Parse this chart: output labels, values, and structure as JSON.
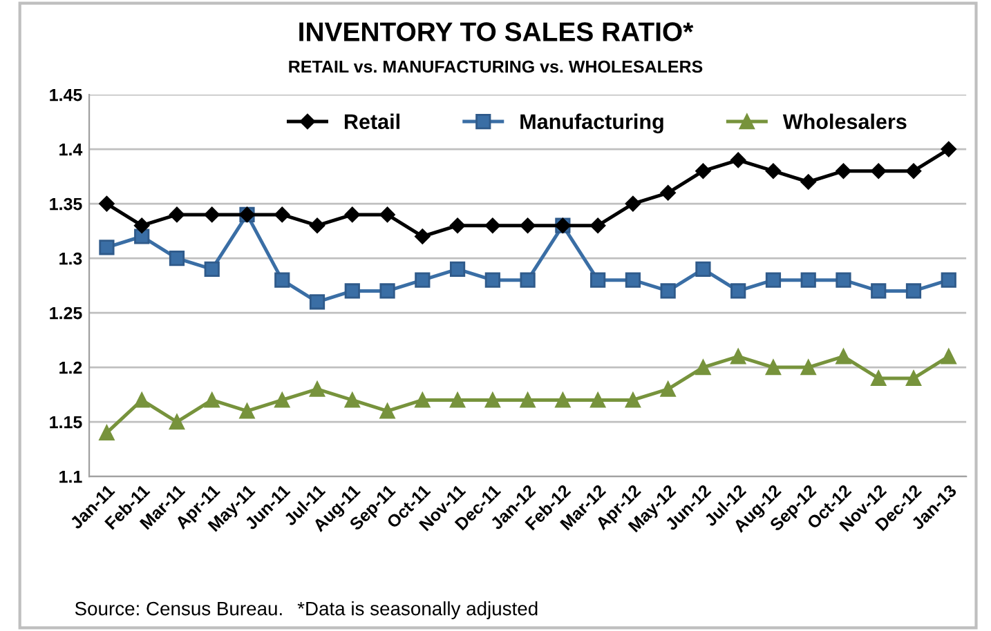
{
  "chart_data": {
    "type": "line",
    "title": "INVENTORY TO SALES RATIO*",
    "subtitle": "RETAIL vs. MANUFACTURING vs. WHOLESALERS",
    "categories": [
      "Jan-11",
      "Feb-11",
      "Mar-11",
      "Apr-11",
      "May-11",
      "Jun-11",
      "Jul-11",
      "Aug-11",
      "Sep-11",
      "Oct-11",
      "Nov-11",
      "Dec-11",
      "Jan-12",
      "Feb-12",
      "Mar-12",
      "Apr-12",
      "May-12",
      "Jun-12",
      "Jul-12",
      "Aug-12",
      "Sep-12",
      "Oct-12",
      "Nov-12",
      "Dec-12",
      "Jan-13"
    ],
    "series": [
      {
        "name": "Retail",
        "color": "#000000",
        "marker": "diamond",
        "values": [
          1.35,
          1.33,
          1.34,
          1.34,
          1.34,
          1.34,
          1.33,
          1.34,
          1.34,
          1.32,
          1.33,
          1.33,
          1.33,
          1.33,
          1.33,
          1.35,
          1.36,
          1.38,
          1.39,
          1.38,
          1.37,
          1.38,
          1.38,
          1.38,
          1.4
        ]
      },
      {
        "name": "Manufacturing",
        "color": "#3a6ea5",
        "marker": "square",
        "values": [
          1.31,
          1.32,
          1.3,
          1.29,
          1.34,
          1.28,
          1.26,
          1.27,
          1.27,
          1.28,
          1.29,
          1.28,
          1.28,
          1.33,
          1.28,
          1.28,
          1.27,
          1.29,
          1.27,
          1.28,
          1.28,
          1.28,
          1.27,
          1.27,
          1.28
        ]
      },
      {
        "name": "Wholesalers",
        "color": "#77933c",
        "marker": "triangle",
        "values": [
          1.14,
          1.17,
          1.15,
          1.17,
          1.16,
          1.17,
          1.18,
          1.17,
          1.16,
          1.17,
          1.17,
          1.17,
          1.17,
          1.17,
          1.17,
          1.17,
          1.18,
          1.2,
          1.21,
          1.2,
          1.2,
          1.21,
          1.19,
          1.19,
          1.21
        ]
      }
    ],
    "ylim": [
      1.1,
      1.45
    ],
    "yticks": [
      1.1,
      1.15,
      1.2,
      1.25,
      1.3,
      1.35,
      1.4,
      1.45
    ],
    "grid": "y",
    "legend": "top",
    "line_style": "solid",
    "annotations": [
      "Source: Census Bureau.",
      "*Data is seasonally adjusted"
    ]
  }
}
